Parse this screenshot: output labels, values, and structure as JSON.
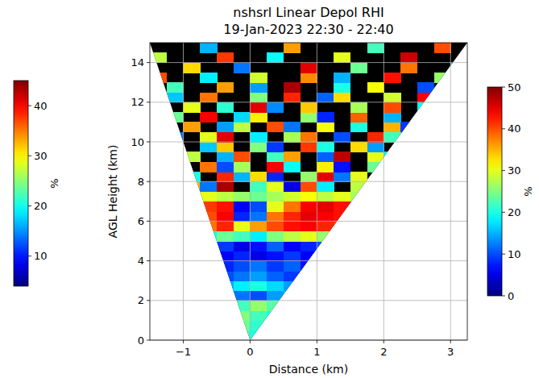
{
  "chart_data": {
    "type": "heatmap",
    "title": "nshsrl Linear Depol RHI",
    "subtitle": "19-Jan-2023 22:30 - 22:40",
    "x_label": "Distance (km)",
    "y_label": "AGL Height (km)",
    "xlim": [
      -1.5,
      3.25
    ],
    "ylim": [
      0,
      15
    ],
    "xticks": [
      {
        "value": -1,
        "label": "−1"
      },
      0,
      1,
      2,
      3
    ],
    "yticks": [
      0,
      2,
      4,
      6,
      8,
      10,
      12,
      14
    ],
    "grid": true,
    "x_edges": [
      -1.5,
      -1.25,
      -1.0,
      -0.75,
      -0.5,
      -0.25,
      0,
      0.25,
      0.5,
      0.75,
      1.0,
      1.25,
      1.5,
      1.75,
      2.0,
      2.25,
      2.5,
      2.75,
      3.0,
      3.25
    ],
    "y_edges": [
      0,
      0.5,
      1,
      1.5,
      2,
      2.5,
      3,
      3.5,
      4,
      4.5,
      5,
      5.5,
      6,
      6.5,
      7,
      7.5,
      8,
      8.5,
      9,
      9.5,
      10,
      10.5,
      11,
      11.5,
      12,
      12.5,
      13,
      13.5,
      14,
      14.5,
      15
    ],
    "cells": [
      [
        null,
        null,
        null,
        null,
        null,
        22,
        20,
        null,
        null,
        null,
        null,
        null,
        null,
        null,
        null,
        null,
        null,
        null,
        null
      ],
      [
        null,
        null,
        null,
        null,
        null,
        24,
        21,
        null,
        null,
        null,
        null,
        null,
        null,
        null,
        null,
        null,
        null,
        null,
        null
      ],
      [
        null,
        null,
        null,
        null,
        null,
        25,
        22,
        20,
        null,
        null,
        null,
        null,
        null,
        null,
        null,
        null,
        null,
        null,
        null
      ],
      [
        null,
        null,
        null,
        null,
        null,
        22,
        26,
        23,
        null,
        null,
        null,
        null,
        null,
        null,
        null,
        null,
        null,
        null,
        null
      ],
      [
        null,
        null,
        null,
        null,
        null,
        12,
        10,
        14,
        16,
        null,
        null,
        null,
        null,
        null,
        null,
        null,
        null,
        null,
        null
      ],
      [
        null,
        null,
        null,
        null,
        15,
        18,
        20,
        17,
        14,
        null,
        null,
        null,
        null,
        null,
        null,
        null,
        null,
        null,
        null
      ],
      [
        null,
        null,
        null,
        null,
        10,
        12,
        14,
        11,
        9,
        13,
        null,
        null,
        null,
        null,
        null,
        null,
        null,
        null,
        null
      ],
      [
        null,
        null,
        null,
        null,
        8,
        10,
        12,
        9,
        11,
        7,
        null,
        null,
        null,
        null,
        null,
        null,
        null,
        null,
        null
      ],
      [
        null,
        null,
        null,
        null,
        6,
        8,
        5,
        7,
        9,
        6,
        null,
        null,
        null,
        null,
        null,
        null,
        null,
        null,
        null
      ],
      [
        null,
        null,
        null,
        null,
        9,
        5,
        7,
        11,
        6,
        8,
        10,
        null,
        null,
        null,
        null,
        null,
        null,
        null,
        null
      ],
      [
        null,
        null,
        null,
        20,
        24,
        22,
        18,
        25,
        28,
        30,
        26,
        null,
        null,
        null,
        null,
        null,
        null,
        null,
        null
      ],
      [
        null,
        null,
        null,
        38,
        42,
        30,
        36,
        40,
        43,
        44,
        42,
        41,
        null,
        null,
        null,
        null,
        null,
        null,
        null
      ],
      [
        null,
        null,
        null,
        40,
        44,
        8,
        12,
        38,
        42,
        45,
        44,
        43,
        null,
        null,
        null,
        null,
        null,
        null,
        null
      ],
      [
        null,
        null,
        null,
        41,
        43,
        6,
        10,
        30,
        38,
        44,
        45,
        43,
        42,
        null,
        null,
        null,
        null,
        null,
        null
      ],
      [
        null,
        null,
        null,
        30,
        28,
        26,
        24,
        27,
        29,
        31,
        28,
        30,
        27,
        null,
        null,
        null,
        null,
        null,
        null
      ],
      [
        null,
        null,
        35,
        12,
        48,
        null,
        22,
        30,
        5,
        40,
        18,
        null,
        28,
        null,
        null,
        null,
        null,
        null,
        null
      ],
      [
        null,
        null,
        20,
        null,
        42,
        15,
        33,
        8,
        null,
        26,
        45,
        12,
        30,
        null,
        null,
        null,
        null,
        null,
        null
      ],
      [
        null,
        null,
        null,
        38,
        10,
        27,
        null,
        44,
        19,
        null,
        32,
        7,
        null,
        24,
        null,
        null,
        null,
        null,
        null
      ],
      [
        null,
        null,
        28,
        null,
        15,
        40,
        null,
        22,
        36,
        null,
        11,
        47,
        null,
        30,
        18,
        null,
        null,
        null,
        null
      ],
      [
        null,
        null,
        null,
        16,
        34,
        null,
        25,
        9,
        null,
        41,
        20,
        null,
        33,
        14,
        null,
        null,
        null,
        null,
        null
      ],
      [
        null,
        12,
        null,
        30,
        45,
        null,
        18,
        null,
        27,
        38,
        null,
        10,
        null,
        42,
        22,
        null,
        null,
        null,
        null
      ],
      [
        null,
        null,
        36,
        null,
        14,
        28,
        null,
        40,
        12,
        null,
        31,
        null,
        20,
        null,
        35,
        9,
        null,
        null,
        null
      ],
      [
        null,
        24,
        null,
        44,
        null,
        17,
        32,
        null,
        null,
        26,
        8,
        null,
        39,
        null,
        15,
        null,
        null,
        null,
        null
      ],
      [
        null,
        null,
        30,
        null,
        21,
        null,
        45,
        13,
        null,
        34,
        null,
        null,
        27,
        null,
        40,
        null,
        19,
        null,
        null
      ],
      [
        null,
        16,
        null,
        38,
        null,
        null,
        25,
        null,
        42,
        null,
        11,
        33,
        null,
        null,
        29,
        null,
        44,
        null,
        null
      ],
      [
        null,
        22,
        null,
        null,
        36,
        null,
        14,
        null,
        48,
        null,
        null,
        20,
        null,
        31,
        null,
        null,
        10,
        null,
        null
      ],
      [
        40,
        null,
        null,
        18,
        null,
        null,
        29,
        null,
        null,
        37,
        null,
        15,
        null,
        null,
        43,
        null,
        null,
        26,
        null
      ],
      [
        null,
        null,
        33,
        null,
        null,
        12,
        null,
        null,
        null,
        45,
        null,
        null,
        24,
        null,
        null,
        38,
        null,
        null,
        17
      ],
      [
        28,
        null,
        null,
        null,
        41,
        null,
        null,
        19,
        null,
        null,
        null,
        30,
        null,
        null,
        null,
        46,
        null,
        null,
        null
      ],
      [
        null,
        null,
        null,
        15,
        null,
        null,
        null,
        null,
        36,
        null,
        null,
        null,
        null,
        22,
        null,
        null,
        null,
        40,
        null
      ]
    ],
    "colorbar": {
      "range": [
        0,
        50
      ],
      "ticks": [
        0,
        10,
        20,
        30,
        40,
        50
      ],
      "label": "%"
    },
    "extra_colorbar": {
      "range": [
        4,
        45
      ],
      "ticks": [
        10,
        20,
        30,
        40
      ],
      "label": "%"
    }
  }
}
